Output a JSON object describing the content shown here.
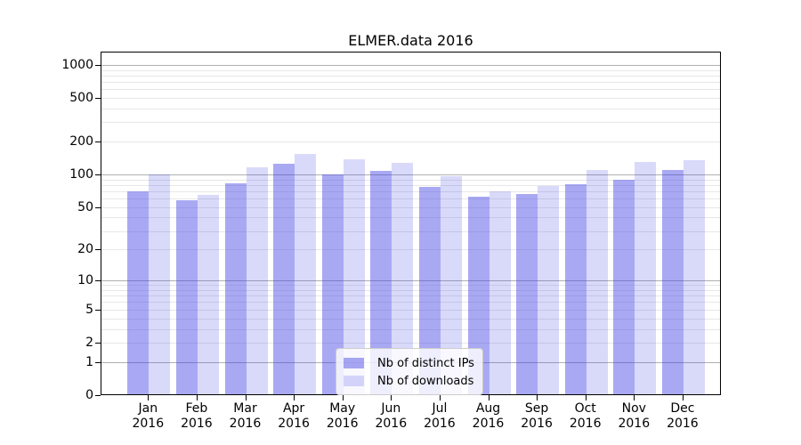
{
  "window": {
    "background": "#ffffff"
  },
  "chart_data": {
    "type": "bar",
    "title": "ELMER.data 2016",
    "categories": [
      "Jan",
      "Feb",
      "Mar",
      "Apr",
      "May",
      "Jun",
      "Jul",
      "Aug",
      "Sep",
      "Oct",
      "Nov",
      "Dec"
    ],
    "category_year": "2016",
    "series": [
      {
        "name": "Nb of distinct IPs",
        "color": "rgba(64,64,228,0.45)",
        "values": [
          70,
          58,
          83,
          125,
          100,
          107,
          77,
          62,
          66,
          81,
          90,
          110
        ]
      },
      {
        "name": "Nb of downloads",
        "color": "rgba(64,64,228,0.20)",
        "values": [
          100,
          65,
          117,
          155,
          138,
          129,
          96,
          70,
          78,
          110,
          130,
          136
        ]
      }
    ],
    "xlabel": "",
    "ylabel": "",
    "y_ticks": [
      0,
      1,
      2,
      5,
      10,
      20,
      50,
      100,
      200,
      500,
      1000
    ],
    "ylim": [
      0,
      1320
    ],
    "y_scale": "log10(value+1)",
    "grid": "on",
    "legend_position": "lower center"
  }
}
